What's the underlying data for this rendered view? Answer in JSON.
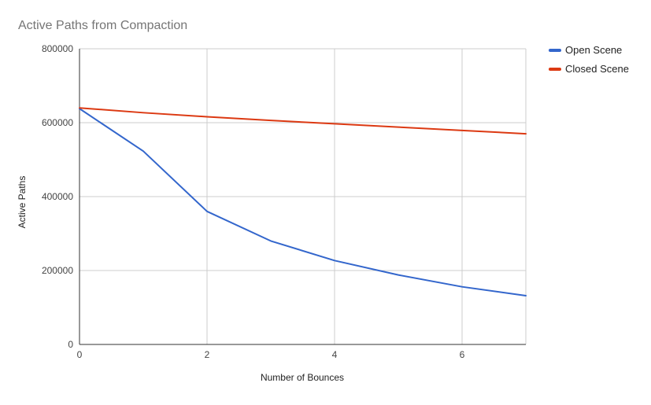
{
  "chart_data": {
    "type": "line",
    "title": "Active Paths from Compaction",
    "xlabel": "Number of Bounces",
    "ylabel": "Active Paths",
    "x": [
      0,
      1,
      2,
      3,
      4,
      5,
      6,
      7
    ],
    "xlim": [
      0,
      7
    ],
    "ylim": [
      0,
      800000
    ],
    "xticks": [
      "0",
      "2",
      "4",
      "6"
    ],
    "xtick_values": [
      0,
      2,
      4,
      6
    ],
    "yticks": [
      "0",
      "200000",
      "400000",
      "600000",
      "800000"
    ],
    "ytick_values": [
      0,
      200000,
      400000,
      600000,
      800000
    ],
    "grid": true,
    "legend_position": "right",
    "series": [
      {
        "name": "Open Scene",
        "color": "#3366cc",
        "values": [
          638000,
          523000,
          360000,
          280000,
          227000,
          188000,
          156000,
          132000
        ]
      },
      {
        "name": "Closed Scene",
        "color": "#dc3912",
        "values": [
          640000,
          627000,
          616000,
          606000,
          597000,
          588000,
          579000,
          570000
        ]
      }
    ]
  }
}
